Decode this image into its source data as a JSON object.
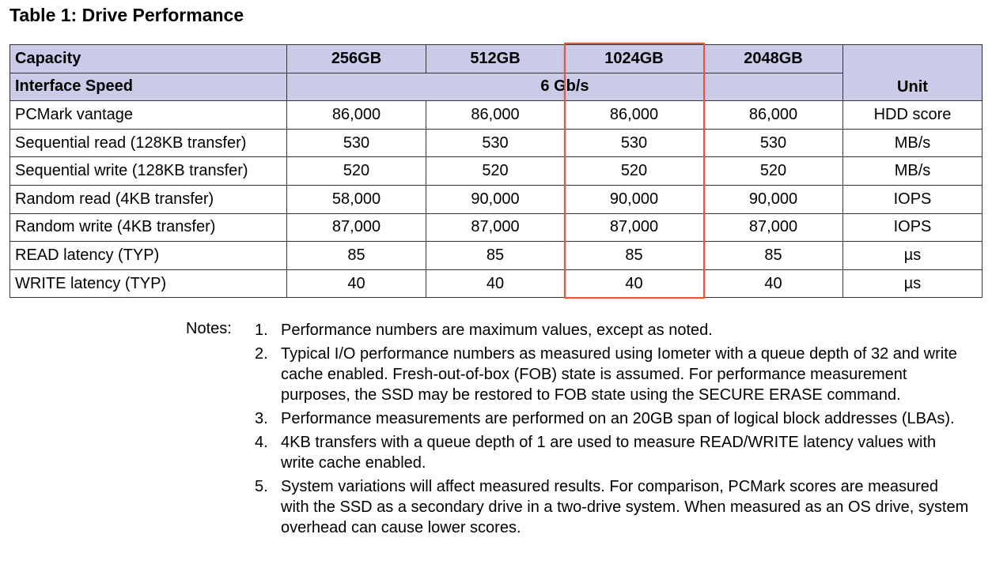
{
  "title": "Table 1: Drive Performance",
  "table": {
    "header": [
      "Capacity",
      "256GB",
      "512GB",
      "1024GB",
      "2048GB"
    ],
    "interface": {
      "label": "Interface Speed",
      "value": "6 Gb/s"
    },
    "unit_header": "Unit",
    "rows": [
      [
        "PCMark vantage",
        "86,000",
        "86,000",
        "86,000",
        "86,000",
        "HDD score"
      ],
      [
        "Sequential read (128KB transfer)",
        "530",
        "530",
        "530",
        "530",
        "MB/s"
      ],
      [
        "Sequential write (128KB transfer)",
        "520",
        "520",
        "520",
        "520",
        "MB/s"
      ],
      [
        "Random read (4KB transfer)",
        "58,000",
        "90,000",
        "90,000",
        "90,000",
        "IOPS"
      ],
      [
        "Random write (4KB transfer)",
        "87,000",
        "87,000",
        "87,000",
        "87,000",
        "IOPS"
      ],
      [
        "READ latency (TYP)",
        "85",
        "85",
        "85",
        "85",
        "µs"
      ],
      [
        "WRITE latency (TYP)",
        "40",
        "40",
        "40",
        "40",
        "µs"
      ]
    ]
  },
  "notes": {
    "label": "Notes:",
    "items": [
      {
        "number": "1.",
        "text": "Performance numbers are maximum values, except as noted."
      },
      {
        "number": "2.",
        "text": "Typical I/O performance numbers as measured using Iometer with a queue depth of 32 and write cache enabled. Fresh-out-of-box (FOB) state is assumed. For performance measurement purposes, the SSD may be restored to FOB state using the SECURE ERASE command."
      },
      {
        "number": "3.",
        "text": "Performance measurements are performed on an 20GB span of logical block addresses (LBAs)."
      },
      {
        "number": "4.",
        "text": "4KB transfers with a queue depth of 1 are used to measure READ/WRITE latency values with write cache enabled."
      },
      {
        "number": "5.",
        "text": "System variations will affect measured results. For comparison, PCMark scores are measured with the SSD as a secondary drive in a two-drive system. When measured as an OS drive, system overhead can cause lower scores."
      }
    ]
  }
}
